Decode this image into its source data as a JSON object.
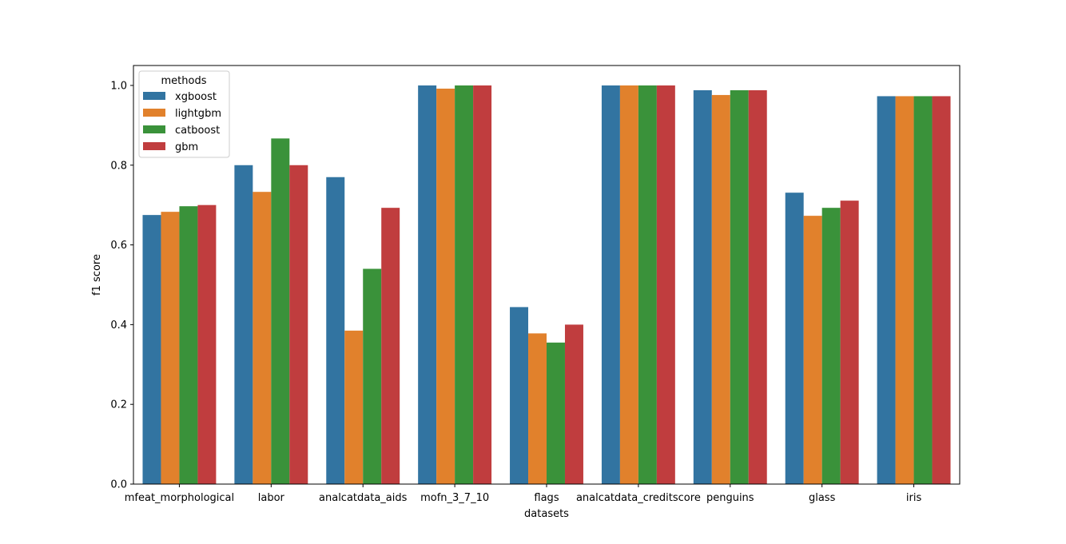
{
  "chart_data": {
    "type": "bar",
    "title": "",
    "xlabel": "datasets",
    "ylabel": "f1 score",
    "ylim": [
      0,
      1.05
    ],
    "yticks": [
      "0.0",
      "0.2",
      "0.4",
      "0.6",
      "0.8",
      "1.0"
    ],
    "grid": false,
    "legend": {
      "title": "methods",
      "placement": "top-left"
    },
    "categories": [
      "mfeat_morphological",
      "labor",
      "analcatdata_aids",
      "mofn_3_7_10",
      "flags",
      "analcatdata_creditscore",
      "penguins",
      "glass",
      "iris"
    ],
    "series": [
      {
        "name": "xgboost",
        "color": "#3274a1",
        "values": [
          0.675,
          0.8,
          0.77,
          1.0,
          0.444,
          1.0,
          0.988,
          0.731,
          0.973
        ]
      },
      {
        "name": "lightgbm",
        "color": "#e1812c",
        "values": [
          0.683,
          0.733,
          0.385,
          0.992,
          0.378,
          1.0,
          0.976,
          0.673,
          0.973
        ]
      },
      {
        "name": "catboost",
        "color": "#3a923a",
        "values": [
          0.697,
          0.867,
          0.54,
          1.0,
          0.355,
          1.0,
          0.988,
          0.693,
          0.973
        ]
      },
      {
        "name": "gbm",
        "color": "#c03d3e",
        "values": [
          0.7,
          0.8,
          0.693,
          1.0,
          0.4,
          1.0,
          0.988,
          0.711,
          0.973
        ]
      }
    ]
  }
}
